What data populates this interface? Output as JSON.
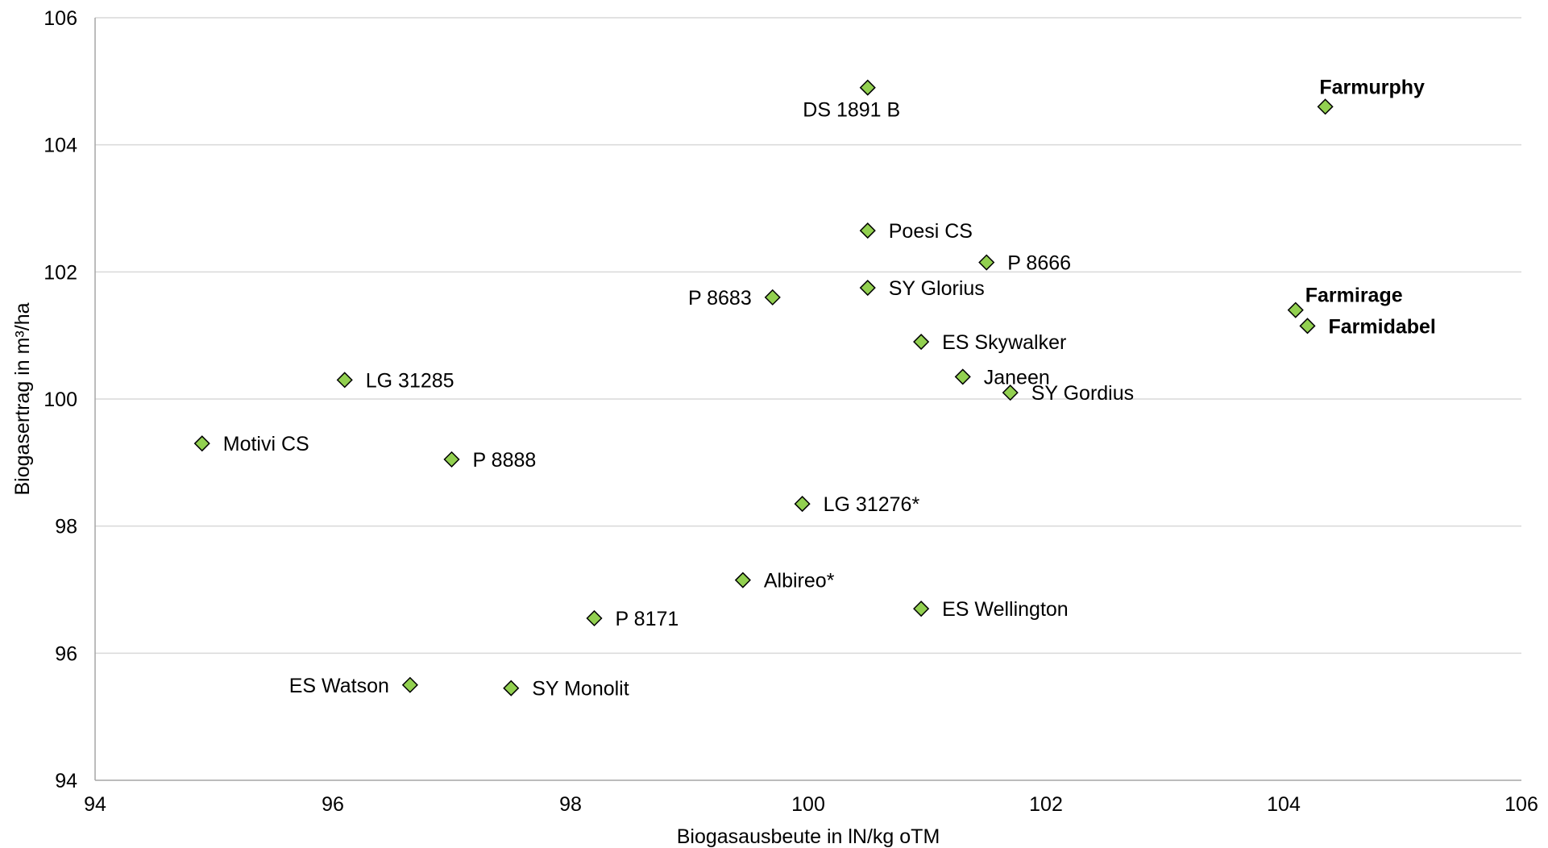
{
  "chart_data": {
    "type": "scatter",
    "title": "",
    "xlabel": "Biogasausbeute in lN/kg oTM",
    "ylabel": "Biogasertrag in m³/ha",
    "xlim": [
      94,
      106
    ],
    "ylim": [
      94,
      106
    ],
    "xticks": [
      94,
      96,
      98,
      100,
      102,
      104,
      106
    ],
    "yticks": [
      94,
      96,
      98,
      100,
      102,
      104,
      106
    ],
    "grid": {
      "horizontal": true,
      "vertical": false
    },
    "legend": "none",
    "marker_color": "#92d050",
    "points": [
      {
        "label": "DS 1891 B",
        "x": 100.5,
        "y": 104.9,
        "bold": false,
        "label_pos": "below"
      },
      {
        "label": "Farmurphy",
        "x": 104.35,
        "y": 104.6,
        "bold": true,
        "label_pos": "above"
      },
      {
        "label": "Poesi CS",
        "x": 100.5,
        "y": 102.65,
        "bold": false,
        "label_pos": "right"
      },
      {
        "label": "P 8666",
        "x": 101.5,
        "y": 102.15,
        "bold": false,
        "label_pos": "right"
      },
      {
        "label": "SY Glorius",
        "x": 100.5,
        "y": 101.75,
        "bold": false,
        "label_pos": "right"
      },
      {
        "label": "P 8683",
        "x": 99.7,
        "y": 101.6,
        "bold": false,
        "label_pos": "left"
      },
      {
        "label": "Farmirage",
        "x": 104.1,
        "y": 101.4,
        "bold": true,
        "label_pos": "above-right"
      },
      {
        "label": "Farmidabel",
        "x": 104.2,
        "y": 101.15,
        "bold": true,
        "label_pos": "right"
      },
      {
        "label": "ES Skywalker",
        "x": 100.95,
        "y": 100.9,
        "bold": false,
        "label_pos": "right"
      },
      {
        "label": "Janeen",
        "x": 101.3,
        "y": 100.35,
        "bold": false,
        "label_pos": "right"
      },
      {
        "label": "SY Gordius",
        "x": 101.7,
        "y": 100.1,
        "bold": false,
        "label_pos": "right"
      },
      {
        "label": "LG 31285",
        "x": 96.1,
        "y": 100.3,
        "bold": false,
        "label_pos": "right"
      },
      {
        "label": "Motivi CS",
        "x": 94.9,
        "y": 99.3,
        "bold": false,
        "label_pos": "right"
      },
      {
        "label": "P 8888",
        "x": 97.0,
        "y": 99.05,
        "bold": false,
        "label_pos": "right"
      },
      {
        "label": "LG 31276*",
        "x": 99.95,
        "y": 98.35,
        "bold": false,
        "label_pos": "right"
      },
      {
        "label": "Albireo*",
        "x": 99.45,
        "y": 97.15,
        "bold": false,
        "label_pos": "right"
      },
      {
        "label": "ES Wellington",
        "x": 100.95,
        "y": 96.7,
        "bold": false,
        "label_pos": "right"
      },
      {
        "label": "P 8171",
        "x": 98.2,
        "y": 96.55,
        "bold": false,
        "label_pos": "right"
      },
      {
        "label": "ES Watson",
        "x": 96.65,
        "y": 95.5,
        "bold": false,
        "label_pos": "left"
      },
      {
        "label": "SY Monolit",
        "x": 97.5,
        "y": 95.45,
        "bold": false,
        "label_pos": "right"
      }
    ]
  }
}
